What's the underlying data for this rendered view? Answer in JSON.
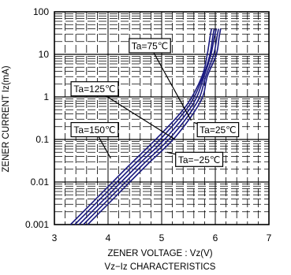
{
  "chart_data": {
    "type": "line",
    "title": "Vz−Iz CHARACTERISTICS",
    "xlabel": "ZENER VOLTAGE : Vz(V)",
    "ylabel": "ZENER CURRENT Iz(mA)",
    "xlim": [
      3,
      7
    ],
    "ylim": [
      0.001,
      100
    ],
    "yscale": "log",
    "xticks": [
      "3",
      "4",
      "5",
      "6",
      "7"
    ],
    "yticks": [
      "0.001",
      "0.01",
      "0.1",
      "1",
      "10",
      "100"
    ],
    "grid": true,
    "curve_color": "#1a1a80",
    "series": [
      {
        "name": "Ta=125℃",
        "x": [
          3.3,
          3.85,
          4.4,
          4.95,
          5.45,
          5.75,
          5.85,
          5.9,
          5.93
        ],
        "y": [
          0.001,
          0.005,
          0.025,
          0.12,
          0.6,
          3,
          10,
          25,
          40
        ]
      },
      {
        "name": "Ta=150℃",
        "x": [
          3.38,
          3.93,
          4.48,
          5.03,
          5.52,
          5.77,
          5.9,
          5.95,
          5.98
        ],
        "y": [
          0.001,
          0.005,
          0.025,
          0.12,
          0.65,
          3,
          10,
          25,
          40
        ]
      },
      {
        "name": "Ta=75℃",
        "x": [
          3.46,
          4.01,
          4.56,
          5.11,
          5.59,
          5.79,
          5.92,
          5.98,
          6.02
        ],
        "y": [
          0.001,
          0.005,
          0.025,
          0.12,
          0.7,
          3,
          10,
          25,
          40
        ]
      },
      {
        "name": "Ta=25℃",
        "x": [
          3.54,
          4.09,
          4.64,
          5.19,
          5.66,
          5.82,
          5.97,
          6.03,
          6.06
        ],
        "y": [
          0.001,
          0.005,
          0.025,
          0.12,
          0.75,
          3,
          10,
          25,
          40
        ]
      },
      {
        "name": "Ta=−25℃",
        "x": [
          3.62,
          4.17,
          4.72,
          5.27,
          5.73,
          5.85,
          6.02,
          6.07,
          6.1
        ],
        "y": [
          0.001,
          0.005,
          0.025,
          0.12,
          0.8,
          3,
          10,
          25,
          40
        ]
      }
    ],
    "annotations": [
      {
        "text": "Ta=75℃"
      },
      {
        "text": "Ta=125℃"
      },
      {
        "text": "Ta=150℃"
      },
      {
        "text": "Ta=25℃"
      },
      {
        "text": "Ta=−25℃"
      }
    ]
  }
}
